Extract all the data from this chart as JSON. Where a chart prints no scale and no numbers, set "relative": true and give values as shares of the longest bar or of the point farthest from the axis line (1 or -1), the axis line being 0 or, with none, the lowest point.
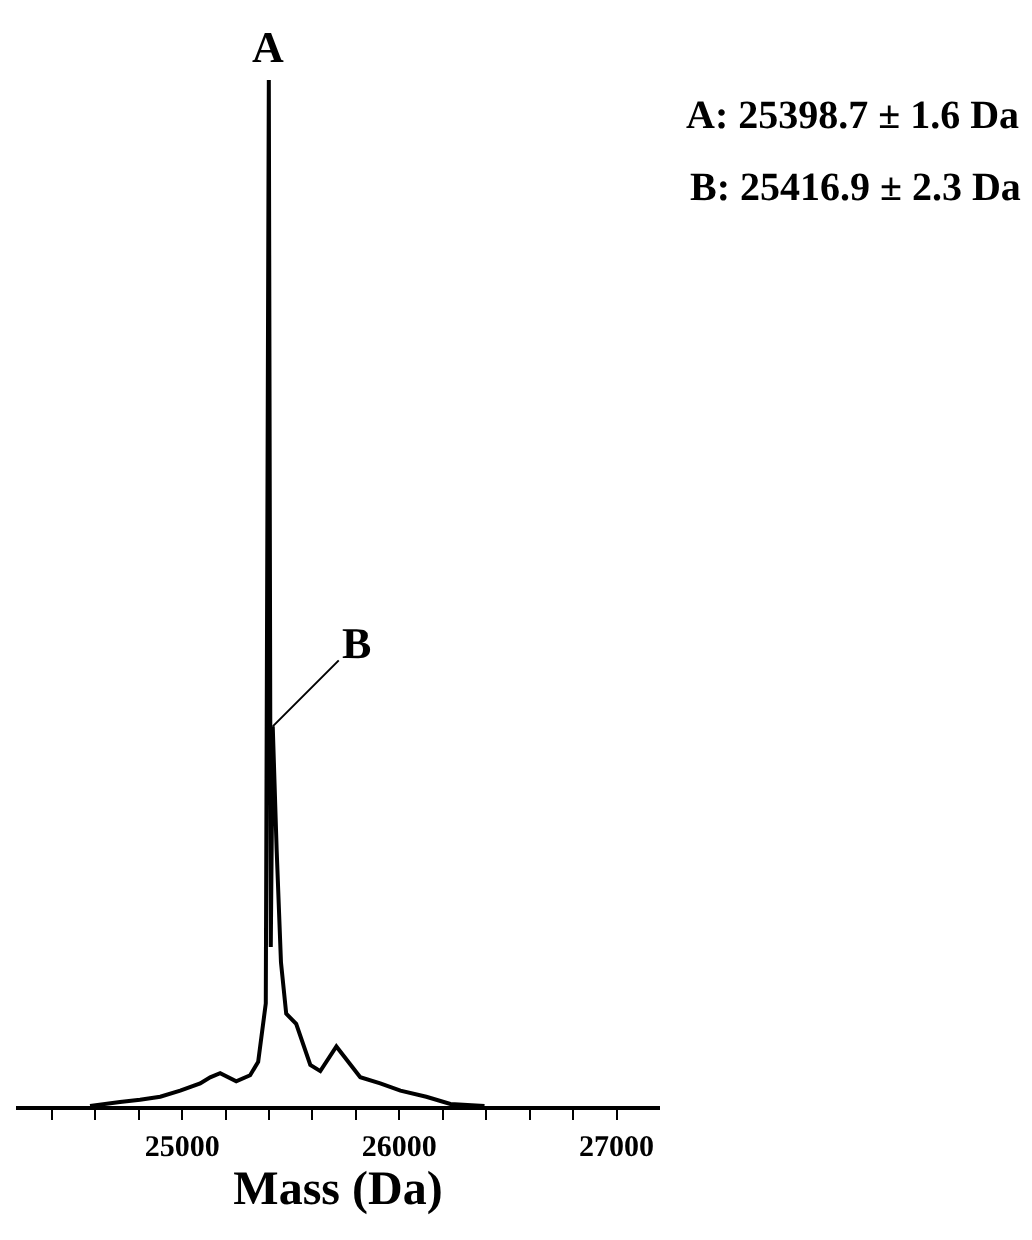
{
  "chart_data": {
    "type": "line",
    "relative": true,
    "xlabel": "Mass (Da)",
    "x": [
      24576,
      24714,
      24806,
      24899,
      24991,
      25083,
      25129,
      25175,
      25249,
      25313,
      25350,
      25385,
      25399,
      25408,
      25417,
      25435,
      25455,
      25479,
      25525,
      25590,
      25636,
      25710,
      25820,
      25912,
      26005,
      26124,
      26235,
      26392
    ],
    "series": [
      {
        "color": "#000000",
        "values": [
          0,
          0.004,
          0.006,
          0.009,
          0.015,
          0.022,
          0.028,
          0.032,
          0.024,
          0.03,
          0.043,
          0.1,
          1.0,
          0.155,
          0.37,
          0.25,
          0.14,
          0.09,
          0.08,
          0.04,
          0.034,
          0.058,
          0.028,
          0.022,
          0.015,
          0.009,
          0.002,
          0
        ]
      }
    ],
    "xlim": [
      24235,
      27200
    ],
    "xticks": [
      {
        "value": 24400,
        "label": null
      },
      {
        "value": 24600,
        "label": null
      },
      {
        "value": 24800,
        "label": null
      },
      25000,
      {
        "value": 25200,
        "label": null
      },
      {
        "value": 25400,
        "label": null
      },
      {
        "value": 25600,
        "label": null
      },
      {
        "value": 25800,
        "label": null
      },
      26000,
      {
        "value": 26200,
        "label": null
      },
      {
        "value": 26400,
        "label": null
      },
      {
        "value": 26600,
        "label": null
      },
      {
        "value": 26800,
        "label": null
      },
      27000
    ],
    "annotations": [
      {
        "text": "A",
        "x": 25399,
        "y": 1.0
      },
      {
        "text": "B",
        "x": 25417,
        "y": 0.37
      },
      "A: 25398.7 ± 1.6 Da",
      "B: 25416.9 ± 2.3 Da"
    ],
    "marker": "none",
    "line_style": "solid"
  }
}
